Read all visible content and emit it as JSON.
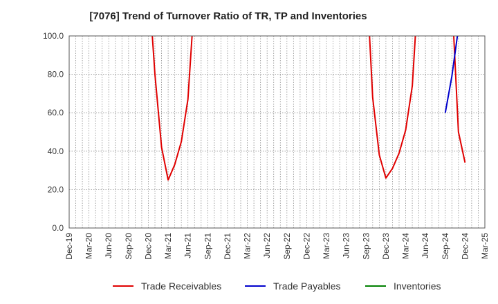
{
  "chart_data": {
    "type": "line",
    "title": "[7076]  Trend of Turnover Ratio of TR, TP and Inventories",
    "xlabel": "",
    "ylabel": "",
    "ylim": [
      0,
      100
    ],
    "yticks": [
      "0.0",
      "20.0",
      "40.0",
      "60.0",
      "80.0",
      "100.0"
    ],
    "x_tick_labels": [
      "Dec-19",
      "Mar-20",
      "Jun-20",
      "Sep-20",
      "Dec-20",
      "Mar-21",
      "Jun-21",
      "Sep-21",
      "Dec-21",
      "Mar-22",
      "Jun-22",
      "Sep-22",
      "Dec-22",
      "Mar-23",
      "Jun-23",
      "Sep-23",
      "Dec-23",
      "Mar-24",
      "Jun-24",
      "Sep-24",
      "Dec-24",
      "Mar-25"
    ],
    "grid": true,
    "legend_position": "bottom",
    "series": [
      {
        "name": "Trade Receivables",
        "color": "#e00000",
        "points": [
          [
            "Dec-20",
            130
          ],
          [
            "Jan-21",
            80
          ],
          [
            "Feb-21",
            42
          ],
          [
            "Mar-21",
            25
          ],
          [
            "Apr-21",
            33
          ],
          [
            "May-21",
            45
          ],
          [
            "Jun-21",
            67
          ],
          [
            "Jul-21",
            120
          ],
          [
            "Sep-23",
            135
          ],
          [
            "Oct-23",
            68
          ],
          [
            "Nov-23",
            38
          ],
          [
            "Dec-23",
            26
          ],
          [
            "Jan-24",
            31
          ],
          [
            "Feb-24",
            39
          ],
          [
            "Mar-24",
            51
          ],
          [
            "Apr-24",
            74
          ],
          [
            "May-24",
            130
          ],
          [
            "Oct-24",
            120
          ],
          [
            "Nov-24",
            50
          ],
          [
            "Dec-24",
            34
          ]
        ]
      },
      {
        "name": "Trade Payables",
        "color": "#0000cc",
        "points": [
          [
            "Sep-24",
            60
          ],
          [
            "Oct-24",
            79
          ],
          [
            "Nov-24",
            104
          ]
        ]
      },
      {
        "name": "Inventories",
        "color": "#008000",
        "points": []
      }
    ]
  }
}
